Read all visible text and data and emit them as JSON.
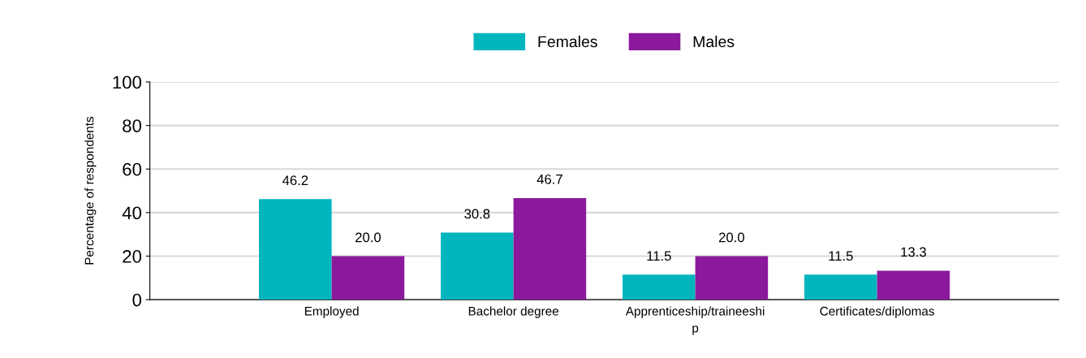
{
  "chart_data": {
    "type": "bar",
    "categories": [
      "Employed",
      "Bachelor degree",
      "Apprenticeship/traineeshi\np",
      "Certificates/diplomas"
    ],
    "series": [
      {
        "name": "Females",
        "color": "#00b6be",
        "values": [
          46.2,
          30.8,
          11.5,
          11.5
        ]
      },
      {
        "name": "Males",
        "color": "#8a1a9b",
        "values": [
          20.0,
          46.7,
          20.0,
          13.3
        ]
      }
    ],
    "value_labels": [
      [
        "46.2",
        "30.8",
        "11.5",
        "11.5"
      ],
      [
        "20.0",
        "46.7",
        "20.0",
        "13.3"
      ]
    ],
    "ylabel": "Percentage of respondents",
    "ylim": [
      0,
      100
    ],
    "yticks": [
      0,
      20,
      40,
      60,
      80,
      100
    ],
    "grid": "y",
    "legend": "top"
  }
}
